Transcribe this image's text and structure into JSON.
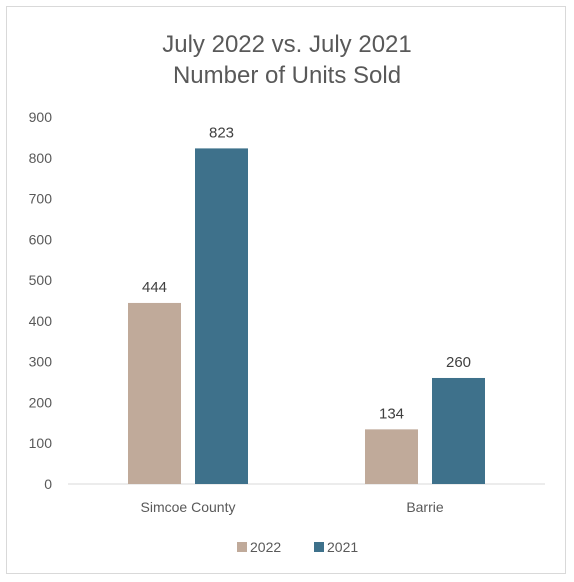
{
  "chart_data": {
    "type": "bar",
    "title": [
      "July 2022 vs. July 2021",
      "Number of Units Sold"
    ],
    "categories": [
      "Simcoe County",
      "Barrie"
    ],
    "series": [
      {
        "name": "2022",
        "values": [
          444,
          134
        ],
        "color": "#c0aa9a"
      },
      {
        "name": "2021",
        "values": [
          823,
          260
        ],
        "color": "#3e718b"
      }
    ],
    "ylim": [
      0,
      900
    ],
    "yticks": [
      0,
      100,
      200,
      300,
      400,
      500,
      600,
      700,
      800,
      900
    ],
    "grid": false,
    "legend": "bottom",
    "data_labels": true
  }
}
